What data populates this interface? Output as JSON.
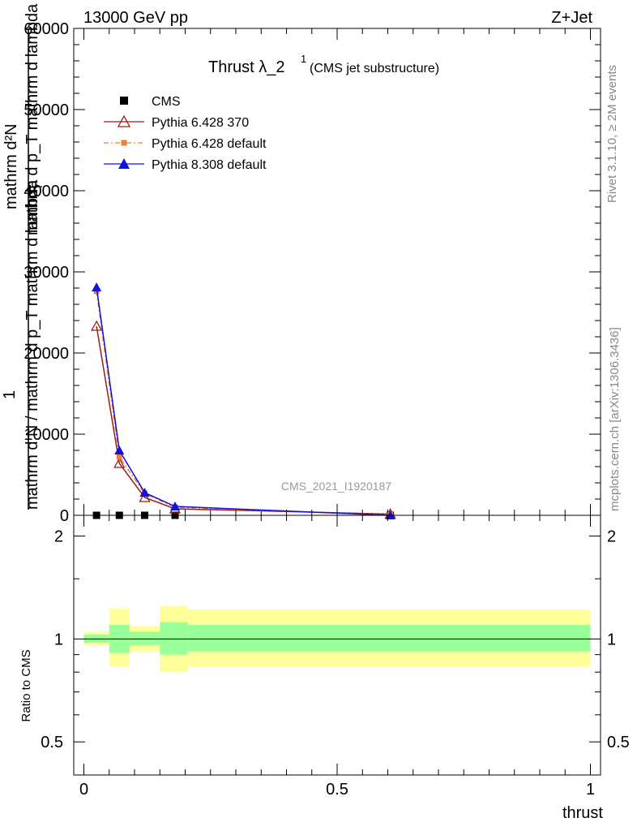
{
  "header": {
    "left": "13000 GeV pp",
    "right": "Z+Jet"
  },
  "side_labels": {
    "rivet": "Rivet 3.1.10, ≥ 2M events",
    "mcplots": "mcplots.cern.ch [arXiv:1306.3436]"
  },
  "top_plot": {
    "title_main": "Thrust λ_2",
    "title_sup": "1",
    "title_sub": "(CMS jet substructure)",
    "watermark": "CMS_2021_I1920187",
    "ylabel_numerator": "mathrm d²N",
    "ylabel_denominator": "mathrm d p_T mathrm d lambda",
    "ylabel_prefix": "1",
    "ylabel_denominator2": "mathrm d N / mathrm d p_T mathrm d lambda",
    "ylabel_sub_t": "T"
  },
  "legend": [
    {
      "label": "CMS",
      "color": "#000000",
      "marker": "square"
    },
    {
      "label": "Pythia 6.428 370",
      "color": "#9b1b1b",
      "marker": "open-triangle"
    },
    {
      "label": "Pythia 6.428 default",
      "color": "#f08030",
      "marker": "square-small",
      "dashed": true
    },
    {
      "label": "Pythia 8.308 default",
      "color": "#1010e0",
      "marker": "triangle"
    }
  ],
  "bottom_plot": {
    "ylabel": "Ratio to CMS",
    "xlabel": "thrust"
  },
  "chart_data": [
    {
      "type": "line",
      "title": "Thrust λ_2¹ (CMS jet substructure)",
      "xlabel": "thrust",
      "ylabel": "1/ (mathrm d N / mathrm d p_T mathrm d lambda) · mathrm d²N / (mathrm d p_T mathrm d lambda)",
      "xlim": [
        -0.02,
        1.02
      ],
      "ylim": [
        0,
        60000
      ],
      "yticks": [
        0,
        10000,
        20000,
        30000,
        40000,
        50000,
        60000
      ],
      "ytick_labels": [
        "0",
        "10000",
        "20000",
        "30000",
        "40000",
        "50000",
        "60000"
      ],
      "legend_position": "top-left",
      "series": [
        {
          "name": "CMS",
          "color": "#000000",
          "x": [
            0.025,
            0.07,
            0.12,
            0.18,
            0.605
          ],
          "y": [
            0,
            0,
            0,
            0,
            0
          ]
        },
        {
          "name": "Pythia 6.428 370",
          "color": "#9b1b1b",
          "x": [
            0.025,
            0.07,
            0.12,
            0.18,
            0.605
          ],
          "y": [
            23300,
            6400,
            2200,
            800,
            150
          ]
        },
        {
          "name": "Pythia 6.428 default",
          "color": "#f08030",
          "x": [
            0.025,
            0.07,
            0.12,
            0.18,
            0.605
          ],
          "y": [
            27600,
            7200,
            2700,
            1000,
            50
          ]
        },
        {
          "name": "Pythia 8.308 default",
          "color": "#1010e0",
          "x": [
            0.025,
            0.07,
            0.12,
            0.18,
            0.605
          ],
          "y": [
            28100,
            8000,
            2800,
            1100,
            0
          ]
        }
      ]
    },
    {
      "type": "area",
      "ylabel": "Ratio to CMS",
      "xlabel": "thrust",
      "xlim": [
        -0.02,
        1.02
      ],
      "ylim": [
        0.4,
        2.3
      ],
      "yscale": "log",
      "yticks": [
        0.5,
        1,
        2
      ],
      "ytick_labels": [
        "0.5",
        "1",
        "2"
      ],
      "xticks": [
        0,
        0.5,
        1
      ],
      "xtick_labels": [
        "0",
        "0.5",
        "1"
      ],
      "reference_line": 1,
      "bands": [
        {
          "x0": 0.0,
          "x1": 0.05,
          "yellow": [
            0.96,
            1.05
          ],
          "green": [
            0.975,
            1.03
          ]
        },
        {
          "x0": 0.05,
          "x1": 0.09,
          "yellow": [
            0.83,
            1.23
          ],
          "green": [
            0.91,
            1.1
          ]
        },
        {
          "x0": 0.09,
          "x1": 0.15,
          "yellow": [
            0.92,
            1.09
          ],
          "green": [
            0.96,
            1.05
          ]
        },
        {
          "x0": 0.15,
          "x1": 0.205,
          "yellow": [
            0.8,
            1.25
          ],
          "green": [
            0.9,
            1.12
          ]
        },
        {
          "x0": 0.205,
          "x1": 1.0,
          "yellow": [
            0.83,
            1.22
          ],
          "green": [
            0.92,
            1.1
          ]
        }
      ]
    }
  ]
}
